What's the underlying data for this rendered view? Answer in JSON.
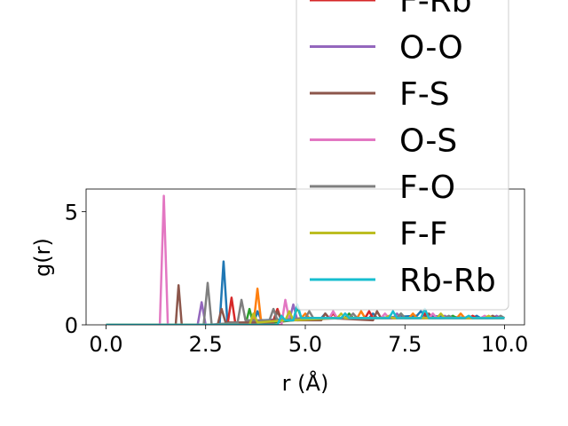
{
  "chart_data": {
    "type": "line",
    "title": "",
    "xlabel": "r (Å)",
    "ylabel": "g(r)",
    "xlim": [
      -0.5,
      10.5
    ],
    "ylim": [
      0,
      6
    ],
    "xticks": [
      {
        "value": 0.0,
        "label": "0.0"
      },
      {
        "value": 2.5,
        "label": "2.5"
      },
      {
        "value": 5.0,
        "label": "5.0"
      },
      {
        "value": 7.5,
        "label": "7.5"
      },
      {
        "value": 10.0,
        "label": "10.0"
      }
    ],
    "yticks": [
      {
        "value": 0,
        "label": "0"
      },
      {
        "value": 5,
        "label": "5"
      }
    ],
    "grid": false,
    "legend_position": "upper-right",
    "series": [
      {
        "name": "",
        "color": "#1f77b4",
        "in_legend": false,
        "x": [
          0,
          2.85,
          2.95,
          3.05,
          3.7,
          3.8,
          3.9,
          5.4,
          5.5,
          5.6,
          6.6,
          6.7,
          6.8,
          7.8,
          7.9,
          8.0,
          9.2,
          9.3,
          9.4,
          10.0
        ],
        "y": [
          0,
          0,
          2.8,
          0,
          0,
          0.6,
          0.2,
          0.3,
          0.5,
          0.3,
          0.3,
          0.5,
          0.3,
          0.4,
          0.6,
          0.4,
          0.3,
          0.4,
          0.3,
          0.3
        ]
      },
      {
        "name": "",
        "color": "#ff7f0e",
        "in_legend": false,
        "x": [
          0,
          3.7,
          3.8,
          3.9,
          4.9,
          5.0,
          5.1,
          6.3,
          6.4,
          6.5,
          7.6,
          7.7,
          7.8,
          8.8,
          8.9,
          9.0,
          10.0
        ],
        "y": [
          0,
          0,
          1.6,
          0,
          0.3,
          0.5,
          0.3,
          0.3,
          0.6,
          0.3,
          0.3,
          0.5,
          0.3,
          0.3,
          0.5,
          0.3,
          0.3
        ]
      },
      {
        "name": "",
        "color": "#2ca02c",
        "in_legend": false,
        "x": [
          0,
          3.5,
          3.6,
          3.7,
          4.7,
          4.8,
          4.9,
          6.0,
          6.1,
          6.2,
          7.3,
          7.4,
          7.5,
          8.6,
          8.7,
          8.8,
          10.0
        ],
        "y": [
          0,
          0,
          0.7,
          0,
          0.2,
          0.8,
          0.3,
          0.3,
          0.5,
          0.3,
          0.3,
          0.5,
          0.3,
          0.3,
          0.4,
          0.3,
          0.3
        ]
      },
      {
        "name": "F-Rb",
        "color": "#d62728",
        "in_legend": true,
        "x": [
          0,
          3.05,
          3.15,
          3.25,
          4.2,
          4.3,
          4.4,
          5.6,
          5.7,
          5.8,
          6.5,
          6.6,
          6.7,
          7.9,
          8.0,
          8.1,
          9.1,
          9.2,
          9.3,
          10.0
        ],
        "y": [
          0,
          0,
          1.2,
          0,
          0.2,
          0.7,
          0.2,
          0.3,
          0.5,
          0.3,
          0.3,
          0.6,
          0.3,
          0.3,
          0.5,
          0.3,
          0.3,
          0.4,
          0.3,
          0.3
        ]
      },
      {
        "name": "O-O",
        "color": "#9467bd",
        "in_legend": true,
        "x": [
          0,
          2.3,
          2.4,
          2.5,
          4.6,
          4.7,
          4.8,
          5.9,
          6.0,
          6.1,
          7.2,
          7.3,
          7.4,
          8.4,
          8.5,
          8.6,
          9.7,
          9.8,
          9.9,
          10.0
        ],
        "y": [
          0,
          0,
          1.0,
          0,
          0.2,
          0.9,
          0.2,
          0.3,
          0.5,
          0.3,
          0.3,
          0.5,
          0.3,
          0.3,
          0.4,
          0.3,
          0.3,
          0.4,
          0.3,
          0.3
        ]
      },
      {
        "name": "F-S",
        "color": "#8c564b",
        "in_legend": true,
        "x": [
          0,
          1.75,
          1.82,
          1.9,
          2.8,
          2.9,
          3.0,
          4.2,
          4.3,
          4.4,
          5.4,
          5.5,
          5.6,
          6.7,
          6.8,
          6.9,
          8.0,
          8.1,
          8.2,
          9.6,
          9.7,
          9.8,
          10.0
        ],
        "y": [
          0,
          0,
          1.75,
          0,
          0,
          0.7,
          0.1,
          0.1,
          0.6,
          0.2,
          0.2,
          0.5,
          0.3,
          0.2,
          0.6,
          0.3,
          0.3,
          0.5,
          0.3,
          0.3,
          0.4,
          0.3,
          0.3
        ]
      },
      {
        "name": "O-S",
        "color": "#e377c2",
        "in_legend": true,
        "x": [
          0,
          1.35,
          1.45,
          1.55,
          4.4,
          4.5,
          4.6,
          5.6,
          5.7,
          5.8,
          6.9,
          7.0,
          7.1,
          8.1,
          8.2,
          8.3,
          9.4,
          9.5,
          9.6,
          10.0
        ],
        "y": [
          0,
          0,
          5.7,
          0,
          0,
          1.1,
          0.2,
          0.3,
          0.6,
          0.3,
          0.3,
          0.5,
          0.3,
          0.3,
          0.5,
          0.3,
          0.3,
          0.4,
          0.3,
          0.3
        ]
      },
      {
        "name": "F-O",
        "color": "#7f7f7f",
        "in_legend": true,
        "x": [
          0,
          2.45,
          2.55,
          2.65,
          3.3,
          3.4,
          3.5,
          4.1,
          4.2,
          4.3,
          5.0,
          5.1,
          5.2,
          6.1,
          6.2,
          6.3,
          7.3,
          7.4,
          7.5,
          8.5,
          8.6,
          8.7,
          9.8,
          9.9,
          10.0
        ],
        "y": [
          0,
          0,
          1.85,
          0,
          0.1,
          1.1,
          0.2,
          0.2,
          0.7,
          0.2,
          0.3,
          0.6,
          0.3,
          0.3,
          0.5,
          0.3,
          0.3,
          0.5,
          0.3,
          0.3,
          0.4,
          0.3,
          0.3,
          0.4,
          0.3
        ]
      },
      {
        "name": "F-F",
        "color": "#bcbd22",
        "in_legend": true,
        "x": [
          0,
          3.6,
          3.7,
          3.8,
          4.5,
          4.6,
          4.7,
          5.8,
          5.9,
          6.0,
          7.0,
          7.1,
          7.2,
          8.3,
          8.4,
          8.5,
          9.5,
          9.6,
          9.7,
          10.0
        ],
        "y": [
          0,
          0,
          0.5,
          0.1,
          0.2,
          0.6,
          0.2,
          0.3,
          0.5,
          0.3,
          0.3,
          0.4,
          0.3,
          0.3,
          0.5,
          0.3,
          0.3,
          0.4,
          0.3,
          0.3
        ]
      },
      {
        "name": "Rb-Rb",
        "color": "#17becf",
        "in_legend": true,
        "x": [
          0,
          4.3,
          4.4,
          4.5,
          4.7,
          4.8,
          4.9,
          5.9,
          6.0,
          6.1,
          7.1,
          7.2,
          7.3,
          7.9,
          8.0,
          8.1,
          9.0,
          9.1,
          9.2,
          10.0
        ],
        "y": [
          0,
          0,
          0.4,
          0.2,
          0.2,
          0.9,
          0.3,
          0.3,
          0.5,
          0.3,
          0.3,
          0.6,
          0.3,
          0.3,
          0.7,
          0.3,
          0.3,
          0.4,
          0.3,
          0.3
        ]
      }
    ]
  }
}
